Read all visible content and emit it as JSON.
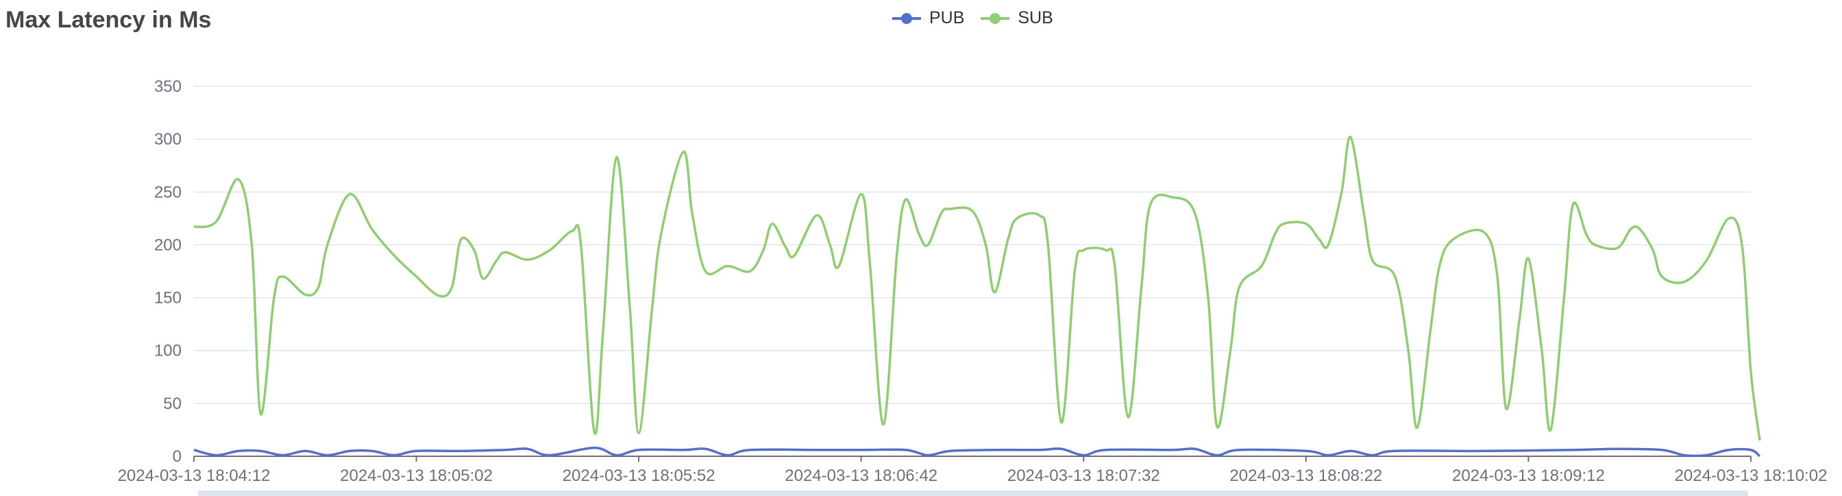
{
  "title": "Max Latency in Ms",
  "legend": [
    {
      "name": "PUB",
      "color": "#5470c6"
    },
    {
      "name": "SUB",
      "color": "#91cc75"
    }
  ],
  "chart_data": {
    "type": "line",
    "title": "Max Latency in Ms",
    "xlabel": "",
    "ylabel": "",
    "ylim": [
      0,
      350
    ],
    "y_ticks": [
      0,
      50,
      100,
      150,
      200,
      250,
      300,
      350
    ],
    "x_tick_labels": [
      "2024-03-13 18:04:12",
      "2024-03-13 18:05:02",
      "2024-03-13 18:05:52",
      "2024-03-13 18:06:42",
      "2024-03-13 18:07:32",
      "2024-03-13 18:08:22",
      "2024-03-13 18:09:12",
      "2024-03-13 18:10:02"
    ],
    "x_start": "2024-03-13 18:04:12",
    "x_end": "2024-03-13 18:10:02",
    "grid": true,
    "legend_position": "top-center",
    "series": [
      {
        "name": "PUB",
        "color": "#5470c6",
        "points": [
          [
            0,
            6
          ],
          [
            5,
            1
          ],
          [
            10,
            5
          ],
          [
            15,
            5
          ],
          [
            20,
            1
          ],
          [
            25,
            5
          ],
          [
            30,
            1
          ],
          [
            35,
            5
          ],
          [
            40,
            5
          ],
          [
            45,
            1
          ],
          [
            50,
            5
          ],
          [
            60,
            5
          ],
          [
            70,
            6
          ],
          [
            75,
            7
          ],
          [
            80,
            1
          ],
          [
            90,
            8
          ],
          [
            95,
            1
          ],
          [
            100,
            6
          ],
          [
            110,
            6
          ],
          [
            115,
            7
          ],
          [
            120,
            1
          ],
          [
            125,
            6
          ],
          [
            140,
            6
          ],
          [
            150,
            6
          ],
          [
            160,
            6
          ],
          [
            165,
            1
          ],
          [
            170,
            5
          ],
          [
            180,
            6
          ],
          [
            190,
            6
          ],
          [
            195,
            7
          ],
          [
            200,
            1
          ],
          [
            205,
            6
          ],
          [
            220,
            6
          ],
          [
            225,
            7
          ],
          [
            230,
            1
          ],
          [
            235,
            6
          ],
          [
            250,
            5
          ],
          [
            255,
            1
          ],
          [
            260,
            5
          ],
          [
            265,
            1
          ],
          [
            270,
            5
          ],
          [
            290,
            5
          ],
          [
            310,
            6
          ],
          [
            320,
            7
          ],
          [
            330,
            6
          ],
          [
            335,
            1
          ],
          [
            340,
            1
          ],
          [
            345,
            6
          ],
          [
            350,
            6
          ],
          [
            352,
            0
          ]
        ]
      },
      {
        "name": "SUB",
        "color": "#91cc75",
        "points": [
          [
            0,
            217
          ],
          [
            5,
            222
          ],
          [
            10,
            262
          ],
          [
            13,
            200
          ],
          [
            15,
            40
          ],
          [
            18,
            150
          ],
          [
            20,
            170
          ],
          [
            25,
            153
          ],
          [
            28,
            160
          ],
          [
            30,
            200
          ],
          [
            35,
            248
          ],
          [
            40,
            215
          ],
          [
            45,
            190
          ],
          [
            50,
            170
          ],
          [
            55,
            152
          ],
          [
            58,
            160
          ],
          [
            60,
            205
          ],
          [
            63,
            195
          ],
          [
            65,
            168
          ],
          [
            68,
            185
          ],
          [
            70,
            193
          ],
          [
            75,
            186
          ],
          [
            80,
            195
          ],
          [
            85,
            213
          ],
          [
            87,
            200
          ],
          [
            90,
            23
          ],
          [
            92,
            120
          ],
          [
            95,
            283
          ],
          [
            98,
            140
          ],
          [
            100,
            22
          ],
          [
            103,
            140
          ],
          [
            105,
            210
          ],
          [
            110,
            288
          ],
          [
            112,
            230
          ],
          [
            115,
            175
          ],
          [
            120,
            180
          ],
          [
            125,
            175
          ],
          [
            128,
            195
          ],
          [
            130,
            220
          ],
          [
            133,
            198
          ],
          [
            135,
            190
          ],
          [
            140,
            228
          ],
          [
            143,
            200
          ],
          [
            145,
            180
          ],
          [
            150,
            248
          ],
          [
            152,
            180
          ],
          [
            155,
            30
          ],
          [
            158,
            190
          ],
          [
            160,
            243
          ],
          [
            163,
            210
          ],
          [
            165,
            200
          ],
          [
            168,
            230
          ],
          [
            170,
            234
          ],
          [
            175,
            232
          ],
          [
            178,
            200
          ],
          [
            180,
            155
          ],
          [
            183,
            205
          ],
          [
            185,
            225
          ],
          [
            190,
            228
          ],
          [
            192,
            200
          ],
          [
            195,
            32
          ],
          [
            198,
            175
          ],
          [
            200,
            195
          ],
          [
            205,
            195
          ],
          [
            207,
            180
          ],
          [
            210,
            37
          ],
          [
            213,
            160
          ],
          [
            215,
            238
          ],
          [
            220,
            245
          ],
          [
            225,
            230
          ],
          [
            228,
            150
          ],
          [
            230,
            28
          ],
          [
            233,
            100
          ],
          [
            235,
            160
          ],
          [
            240,
            180
          ],
          [
            243,
            210
          ],
          [
            245,
            220
          ],
          [
            250,
            220
          ],
          [
            253,
            205
          ],
          [
            255,
            200
          ],
          [
            258,
            250
          ],
          [
            260,
            302
          ],
          [
            263,
            230
          ],
          [
            265,
            185
          ],
          [
            270,
            170
          ],
          [
            273,
            100
          ],
          [
            275,
            27
          ],
          [
            278,
            120
          ],
          [
            280,
            180
          ],
          [
            283,
            205
          ],
          [
            290,
            212
          ],
          [
            293,
            170
          ],
          [
            295,
            45
          ],
          [
            298,
            130
          ],
          [
            300,
            187
          ],
          [
            303,
            100
          ],
          [
            305,
            25
          ],
          [
            308,
            150
          ],
          [
            310,
            238
          ],
          [
            313,
            210
          ],
          [
            315,
            200
          ],
          [
            320,
            197
          ],
          [
            323,
            215
          ],
          [
            325,
            215
          ],
          [
            328,
            195
          ],
          [
            330,
            170
          ],
          [
            335,
            165
          ],
          [
            340,
            185
          ],
          [
            345,
            225
          ],
          [
            348,
            200
          ],
          [
            350,
            80
          ],
          [
            352,
            15
          ]
        ]
      }
    ]
  }
}
